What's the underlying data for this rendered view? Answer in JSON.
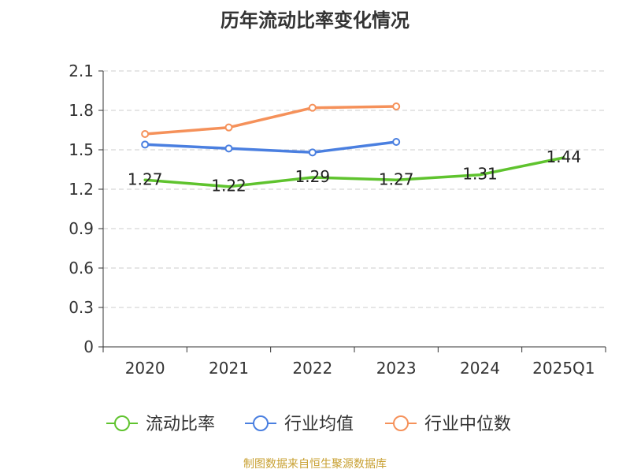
{
  "chart_data": {
    "type": "line",
    "title": "历年流动比率变化情况",
    "categories": [
      "2020",
      "2021",
      "2022",
      "2023",
      "2024",
      "2025Q1"
    ],
    "ylim": [
      0,
      2.1
    ],
    "yticks": [
      "0",
      "0.3",
      "0.6",
      "0.9",
      "1.2",
      "1.5",
      "1.8",
      "2.1"
    ],
    "ytick_values": [
      0,
      0.3,
      0.6,
      0.9,
      1.2,
      1.5,
      1.8,
      2.1
    ],
    "grid": true,
    "legend_position": "bottom",
    "series": [
      {
        "name": "流动比率",
        "color": "#5fc32e",
        "values": [
          1.27,
          1.22,
          1.29,
          1.27,
          1.31,
          1.44
        ],
        "labels": [
          "1.27",
          "1.22",
          "1.29",
          "1.27",
          "1.31",
          "1.44"
        ],
        "show_markers": false
      },
      {
        "name": "行业均值",
        "color": "#4a7fe0",
        "values": [
          1.54,
          1.51,
          1.48,
          1.56,
          null,
          null
        ],
        "show_markers": true
      },
      {
        "name": "行业中位数",
        "color": "#f5915a",
        "values": [
          1.62,
          1.67,
          1.82,
          1.83,
          null,
          null
        ],
        "show_markers": true
      }
    ]
  },
  "source": "制图数据来自恒生聚源数据库"
}
